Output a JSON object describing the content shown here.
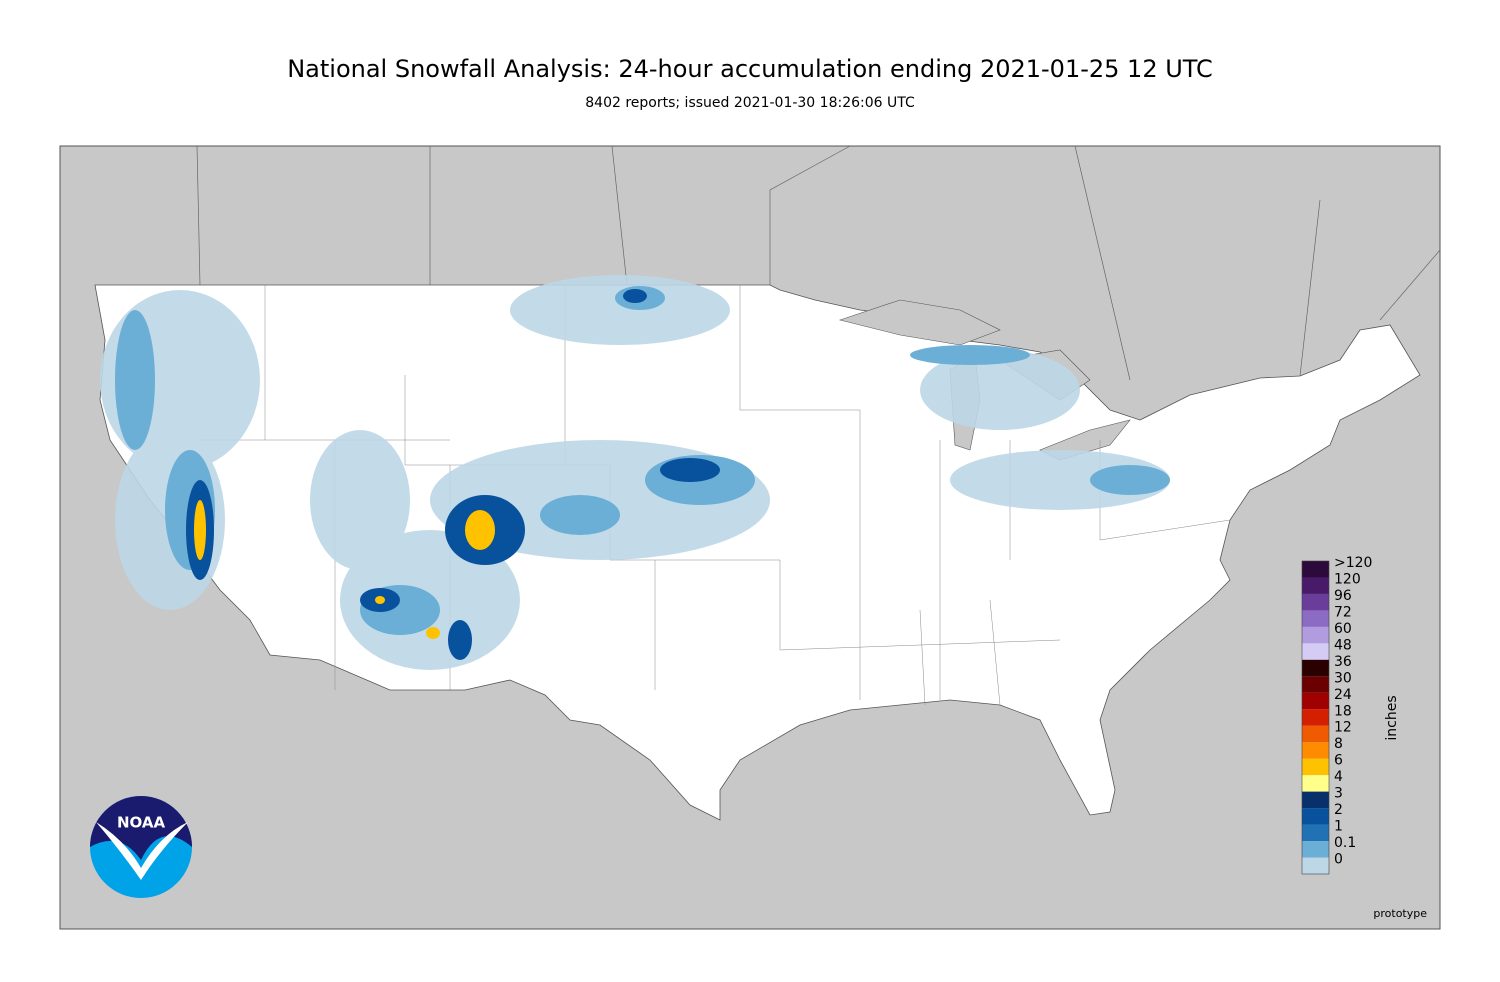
{
  "header": {
    "title": "National Snowfall Analysis: 24-hour accumulation ending 2021-01-25 12 UTC",
    "subtitle": "8402 reports; issued 2021-01-30 18:26:06 UTC"
  },
  "legend": {
    "unit": "inches",
    "items": [
      {
        "label": ">120",
        "color": "#2d0a3c"
      },
      {
        "label": "120",
        "color": "#4a1a6a"
      },
      {
        "label": "96",
        "color": "#6a3d9a"
      },
      {
        "label": "72",
        "color": "#8c6bc4"
      },
      {
        "label": "60",
        "color": "#b19ce0"
      },
      {
        "label": "48",
        "color": "#d4ccf5"
      },
      {
        "label": "36",
        "color": "#2b0000"
      },
      {
        "label": "30",
        "color": "#6b0000"
      },
      {
        "label": "24",
        "color": "#a00000"
      },
      {
        "label": "18",
        "color": "#d42000"
      },
      {
        "label": "12",
        "color": "#f05a00"
      },
      {
        "label": "8",
        "color": "#ff8c00"
      },
      {
        "label": "6",
        "color": "#ffc200"
      },
      {
        "label": "4",
        "color": "#ffff8a"
      },
      {
        "label": "3",
        "color": "#08306b"
      },
      {
        "label": "2",
        "color": "#08519c"
      },
      {
        "label": "1",
        "color": "#2171b5"
      },
      {
        "label": "0.1",
        "color": "#6baed6"
      },
      {
        "label": "0",
        "color": "#bdd7e7"
      }
    ]
  },
  "logo": "NOAA",
  "footer": "prototype"
}
